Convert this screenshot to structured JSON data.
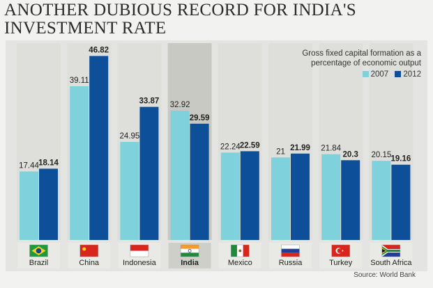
{
  "title": "ANOTHER DUBIOUS RECORD FOR INDIA'S INVESTMENT RATE",
  "source": "Source: World Bank",
  "colors": {
    "y2007": "#7fd1db",
    "y2012": "#0d4f98",
    "highlight_band": "#c9c9c3",
    "panel": "#e4e4e2"
  },
  "chart_data": {
    "type": "bar",
    "title": "ANOTHER DUBIOUS RECORD FOR INDIA'S INVESTMENT RATE",
    "subtitle": "Gross fixed capital formation as a percentage of economic output",
    "categories": [
      "Brazil",
      "China",
      "Indonesia",
      "India",
      "Mexico",
      "Russia",
      "Turkey",
      "South Africa"
    ],
    "highlight_category": "India",
    "series": [
      {
        "name": "2007",
        "values": [
          17.44,
          39.11,
          24.95,
          32.92,
          22.24,
          21,
          21.84,
          20.15
        ],
        "labels": [
          "17.44",
          "39.11",
          "24.95",
          "32.92",
          "22.24",
          "21",
          "21.84",
          "20.15"
        ]
      },
      {
        "name": "2012",
        "values": [
          18.14,
          46.82,
          33.87,
          29.59,
          22.59,
          21.99,
          20.3,
          19.16
        ],
        "labels": [
          "18.14",
          "46.82",
          "33.87",
          "29.59",
          "22.59",
          "21.99",
          "20.3",
          "19.16"
        ]
      }
    ],
    "ylim": [
      0,
      50
    ],
    "flag_icons": [
      "brazil-flag-icon",
      "china-flag-icon",
      "indonesia-flag-icon",
      "india-flag-icon",
      "mexico-flag-icon",
      "russia-flag-icon",
      "turkey-flag-icon",
      "south-africa-flag-icon"
    ],
    "legend_position": "top-right",
    "grid": false
  }
}
